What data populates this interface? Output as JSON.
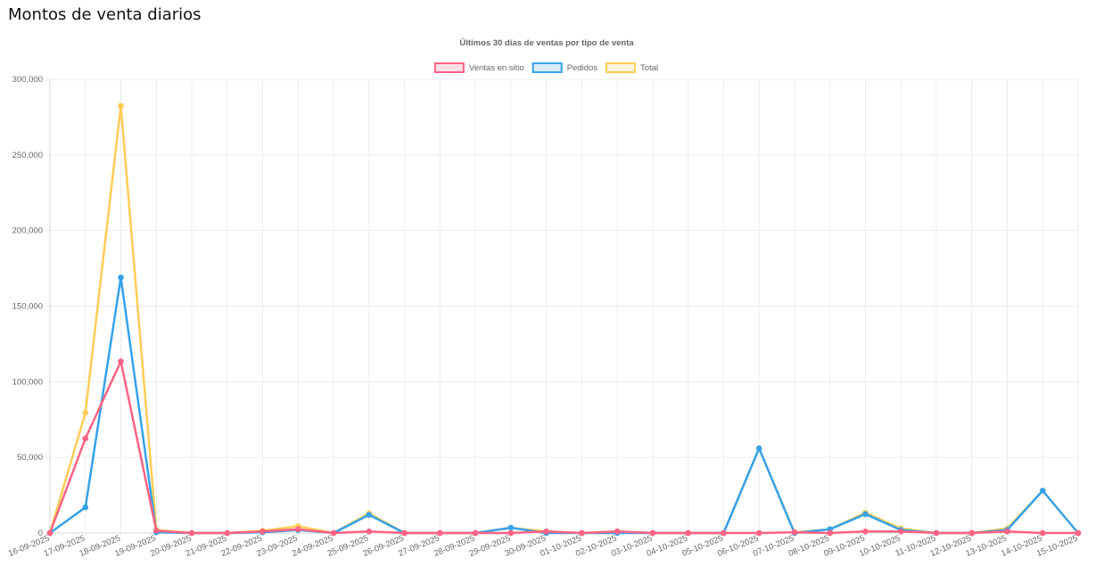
{
  "page": {
    "title": "Montos de venta diarios"
  },
  "chart_data": {
    "type": "line",
    "title": "Últimos 30 días de ventas por tipo de venta",
    "xlabel": "",
    "ylabel": "",
    "ylim": [
      0,
      300000
    ],
    "yticks": [
      0,
      50000,
      100000,
      150000,
      200000,
      250000,
      300000
    ],
    "ytick_labels": [
      "0",
      "50,000",
      "100,000",
      "150,000",
      "200,000",
      "250,000",
      "300,000"
    ],
    "legend_position": "top-center",
    "grid": true,
    "categories": [
      "16-09-2025",
      "17-09-2025",
      "18-09-2025",
      "19-09-2025",
      "20-09-2025",
      "21-09-2025",
      "22-09-2025",
      "23-09-2025",
      "24-09-2025",
      "25-09-2025",
      "26-09-2025",
      "27-09-2025",
      "28-09-2025",
      "29-09-2025",
      "30-09-2025",
      "01-10-2025",
      "02-10-2025",
      "03-10-2025",
      "04-10-2025",
      "05-10-2025",
      "06-10-2025",
      "07-10-2025",
      "08-10-2025",
      "09-10-2025",
      "10-10-2025",
      "11-10-2025",
      "12-10-2025",
      "13-10-2025",
      "14-10-2025",
      "15-10-2025"
    ],
    "series": [
      {
        "name": "Ventas en sitio",
        "color": "#ff6384",
        "fill": "#ffe0e6",
        "values": [
          0,
          62500,
          113500,
          1500,
          0,
          0,
          1000,
          2500,
          0,
          1000,
          0,
          0,
          0,
          0,
          1000,
          0,
          1000,
          0,
          0,
          0,
          0,
          500,
          0,
          1000,
          1000,
          0,
          0,
          1000,
          0,
          0
        ]
      },
      {
        "name": "Pedidos",
        "color": "#36a2eb",
        "fill": "#d7ecfb",
        "values": [
          0,
          17000,
          169000,
          500,
          0,
          0,
          500,
          2000,
          0,
          12000,
          0,
          0,
          0,
          3500,
          0,
          0,
          0,
          0,
          0,
          0,
          56000,
          0,
          2500,
          12500,
          2000,
          0,
          0,
          2000,
          28000,
          0
        ]
      },
      {
        "name": "Total",
        "color": "#ffcd56",
        "fill": "#fff5dd",
        "values": [
          0,
          79500,
          282500,
          2000,
          0,
          0,
          1500,
          4500,
          0,
          13000,
          0,
          0,
          0,
          3500,
          1000,
          0,
          1000,
          0,
          0,
          0,
          56000,
          500,
          2500,
          13500,
          3000,
          0,
          0,
          3000,
          28000,
          0
        ]
      }
    ]
  }
}
